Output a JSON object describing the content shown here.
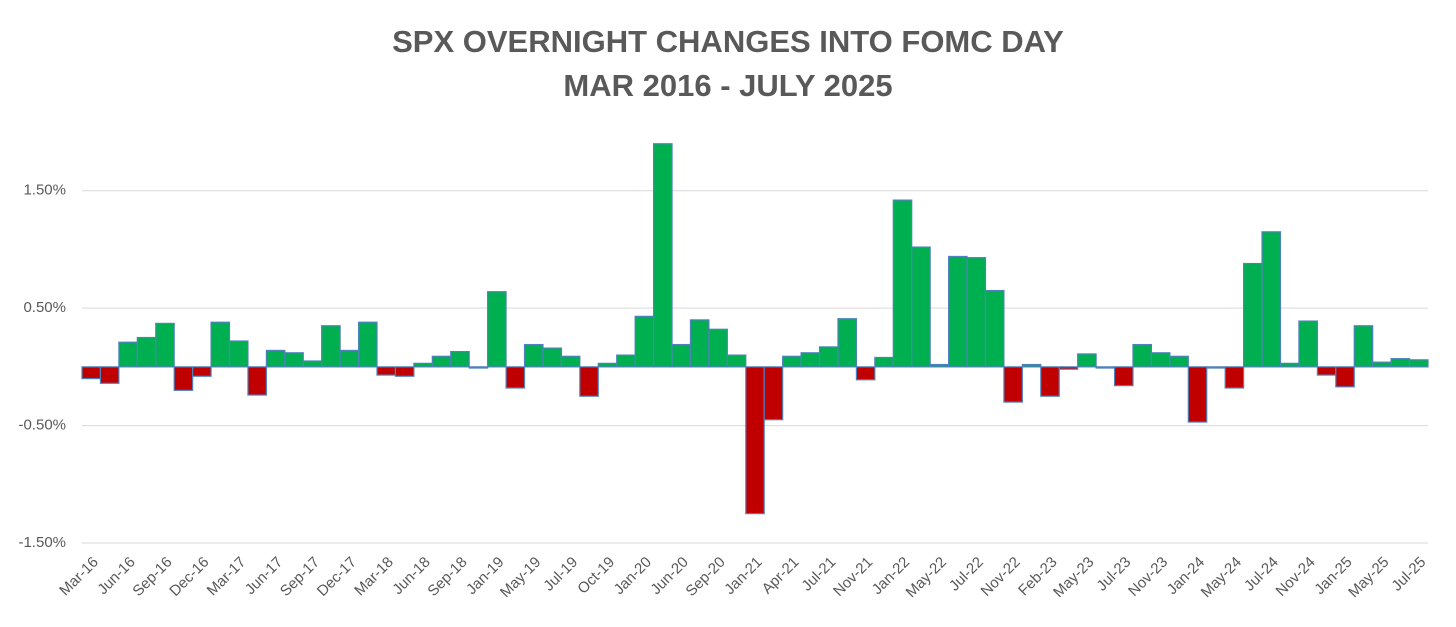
{
  "chart_data": {
    "type": "bar",
    "title": [
      "SPX OVERNIGHT CHANGES INTO FOMC DAY",
      "MAR 2016 - JULY 2025"
    ],
    "categories": [
      "Mar-16",
      null,
      "Jun-16",
      null,
      "Sep-16",
      null,
      "Dec-16",
      null,
      "Mar-17",
      null,
      "Jun-17",
      null,
      "Sep-17",
      null,
      "Dec-17",
      null,
      "Mar-18",
      null,
      "Jun-18",
      null,
      "Sep-18",
      null,
      "Jan-19",
      null,
      "May-19",
      null,
      "Jul-19",
      null,
      "Oct-19",
      null,
      "Jan-20",
      null,
      "Jun-20",
      null,
      "Sep-20",
      null,
      "Jan-21",
      null,
      "Apr-21",
      null,
      "Jul-21",
      null,
      "Nov-21",
      null,
      "Jan-22",
      null,
      "May-22",
      null,
      "Jul-22",
      null,
      "Nov-22",
      null,
      "Feb-23",
      null,
      "May-23",
      null,
      "Jul-23",
      null,
      "Nov-23",
      null,
      "Jan-24",
      null,
      "May-24",
      null,
      "Jul-24",
      null,
      "Nov-24",
      null,
      "Jan-25",
      null,
      "May-25",
      null,
      "Jul-25"
    ],
    "values": [
      -0.1,
      -0.14,
      0.21,
      0.25,
      0.37,
      -0.2,
      -0.08,
      0.38,
      0.22,
      -0.24,
      0.14,
      0.12,
      0.05,
      0.35,
      0.14,
      0.38,
      -0.07,
      -0.08,
      0.03,
      0.09,
      0.13,
      -0.01,
      0.64,
      -0.18,
      0.19,
      0.16,
      0.09,
      -0.25,
      0.03,
      0.1,
      0.43,
      1.9,
      0.19,
      0.4,
      0.32,
      0.1,
      -1.25,
      -0.45,
      0.09,
      0.12,
      0.17,
      0.41,
      -0.11,
      0.08,
      1.42,
      1.02,
      0.02,
      0.94,
      0.93,
      0.65,
      -0.3,
      0.02,
      -0.25,
      -0.02,
      0.11,
      -0.01,
      -0.16,
      0.19,
      0.12,
      0.09,
      -0.47,
      -0.01,
      -0.18,
      0.88,
      1.15,
      0.03,
      0.39,
      -0.07,
      -0.17,
      0.35,
      0.04,
      0.07,
      0.06
    ],
    "color": "#00b050",
    "negative_color": "#c00000",
    "edge_color": "#4f81bd",
    "ylim": [
      -1.5,
      2.0
    ],
    "yticks": [
      {
        "value": 1.5,
        "label": "1.50%"
      },
      {
        "value": 0.5,
        "label": "0.50%"
      },
      {
        "value": -0.5,
        "label": "-0.50%"
      },
      {
        "value": -1.5,
        "label": "-1.50%"
      }
    ],
    "grid": true
  }
}
